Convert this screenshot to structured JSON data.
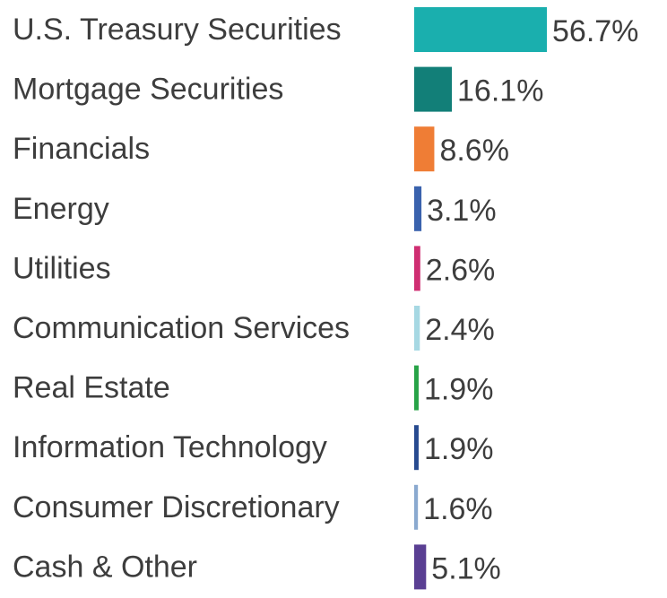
{
  "chart_data": {
    "type": "bar",
    "orientation": "horizontal",
    "categories": [
      "U.S. Treasury Securities",
      "Mortgage Securities",
      "Financials",
      "Energy",
      "Utilities",
      "Communication Services",
      "Real Estate",
      "Information Technology",
      "Consumer Discretionary",
      "Cash & Other"
    ],
    "values": [
      56.7,
      16.1,
      8.6,
      3.1,
      2.6,
      2.4,
      1.9,
      1.9,
      1.6,
      5.1
    ],
    "value_labels": [
      "56.7%",
      "16.1%",
      "8.6%",
      "3.1%",
      "2.6%",
      "2.4%",
      "1.9%",
      "1.9%",
      "1.6%",
      "5.1%"
    ],
    "colors": [
      "#1aafae",
      "#127f78",
      "#ef7d35",
      "#3a62ad",
      "#cf2e72",
      "#a6d8e3",
      "#27a347",
      "#274a8f",
      "#8aa9cf",
      "#5a3f93"
    ],
    "title": "",
    "xlabel": "",
    "ylabel": "",
    "xlim": [
      0,
      56.7
    ],
    "grid": false,
    "legend": "none"
  }
}
